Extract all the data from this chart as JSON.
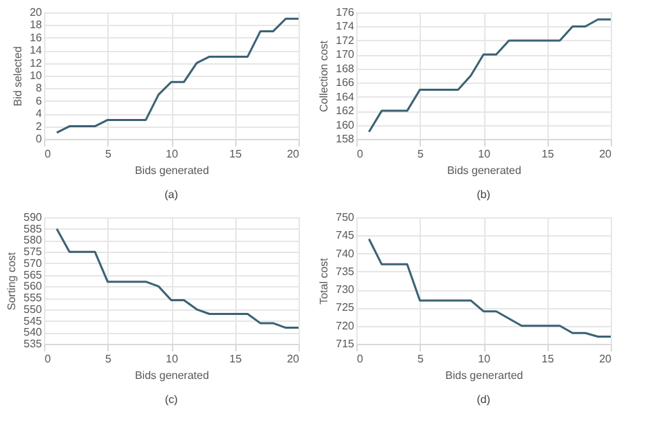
{
  "chart_data": [
    {
      "type": "line",
      "x": [
        1,
        2,
        3,
        4,
        5,
        6,
        7,
        8,
        9,
        10,
        11,
        12,
        13,
        14,
        15,
        16,
        17,
        18,
        19,
        20
      ],
      "series": [
        {
          "color": "#3b6275",
          "values": [
            1,
            2,
            2,
            2,
            3,
            3,
            3,
            3,
            7,
            9,
            9,
            12,
            13,
            13,
            13,
            13,
            17,
            17,
            19,
            19
          ]
        }
      ],
      "xlabel": "Bids generated",
      "ylabel": "Bid selected",
      "xlim": [
        0,
        20
      ],
      "xticks": [
        0,
        5,
        10,
        15,
        20
      ],
      "ylim": [
        0,
        20
      ],
      "yticks": [
        0,
        2,
        4,
        6,
        8,
        10,
        12,
        14,
        16,
        18,
        20
      ],
      "grid": true,
      "annotations": [
        "(a)"
      ]
    },
    {
      "type": "line",
      "x": [
        1,
        2,
        3,
        4,
        5,
        6,
        7,
        8,
        9,
        10,
        11,
        12,
        13,
        14,
        15,
        16,
        17,
        18,
        19,
        20
      ],
      "series": [
        {
          "color": "#3b6275",
          "values": [
            159,
            162,
            162,
            162,
            165,
            165,
            165,
            165,
            167,
            170,
            170,
            172,
            172,
            172,
            172,
            172,
            174,
            174,
            175,
            175
          ]
        }
      ],
      "xlabel": "Bids generated",
      "ylabel": "Collection cost",
      "xlim": [
        0,
        20
      ],
      "xticks": [
        0,
        5,
        10,
        15,
        20
      ],
      "ylim": [
        158,
        176
      ],
      "yticks": [
        158,
        160,
        162,
        164,
        166,
        168,
        170,
        172,
        174,
        176
      ],
      "grid": true,
      "annotations": [
        "(b)"
      ]
    },
    {
      "type": "line",
      "x": [
        1,
        2,
        3,
        4,
        5,
        6,
        7,
        8,
        9,
        10,
        11,
        12,
        13,
        14,
        15,
        16,
        17,
        18,
        19,
        20
      ],
      "series": [
        {
          "color": "#3b6275",
          "values": [
            585,
            575,
            575,
            575,
            562,
            562,
            562,
            562,
            560,
            554,
            554,
            550,
            548,
            548,
            548,
            548,
            544,
            544,
            542,
            542
          ]
        }
      ],
      "xlabel": "Bids generated",
      "ylabel": "Sorting cost",
      "xlim": [
        0,
        20
      ],
      "xticks": [
        0,
        5,
        10,
        15,
        20
      ],
      "ylim": [
        535,
        590
      ],
      "yticks": [
        535,
        540,
        545,
        550,
        555,
        560,
        565,
        570,
        575,
        580,
        585,
        590
      ],
      "grid": true,
      "annotations": [
        "(c)"
      ]
    },
    {
      "type": "line",
      "x": [
        1,
        2,
        3,
        4,
        5,
        6,
        7,
        8,
        9,
        10,
        11,
        12,
        13,
        14,
        15,
        16,
        17,
        18,
        19,
        20
      ],
      "series": [
        {
          "color": "#3b6275",
          "values": [
            744,
            737,
            737,
            737,
            727,
            727,
            727,
            727,
            727,
            724,
            724,
            722,
            720,
            720,
            720,
            720,
            718,
            718,
            717,
            717
          ]
        }
      ],
      "xlabel": "Bids generarted",
      "ylabel": "Total cost",
      "xlim": [
        0,
        20
      ],
      "xticks": [
        0,
        5,
        10,
        15,
        20
      ],
      "ylim": [
        715,
        750
      ],
      "yticks": [
        715,
        720,
        725,
        730,
        735,
        740,
        745,
        750
      ],
      "grid": true,
      "annotations": [
        "(d)"
      ]
    }
  ]
}
